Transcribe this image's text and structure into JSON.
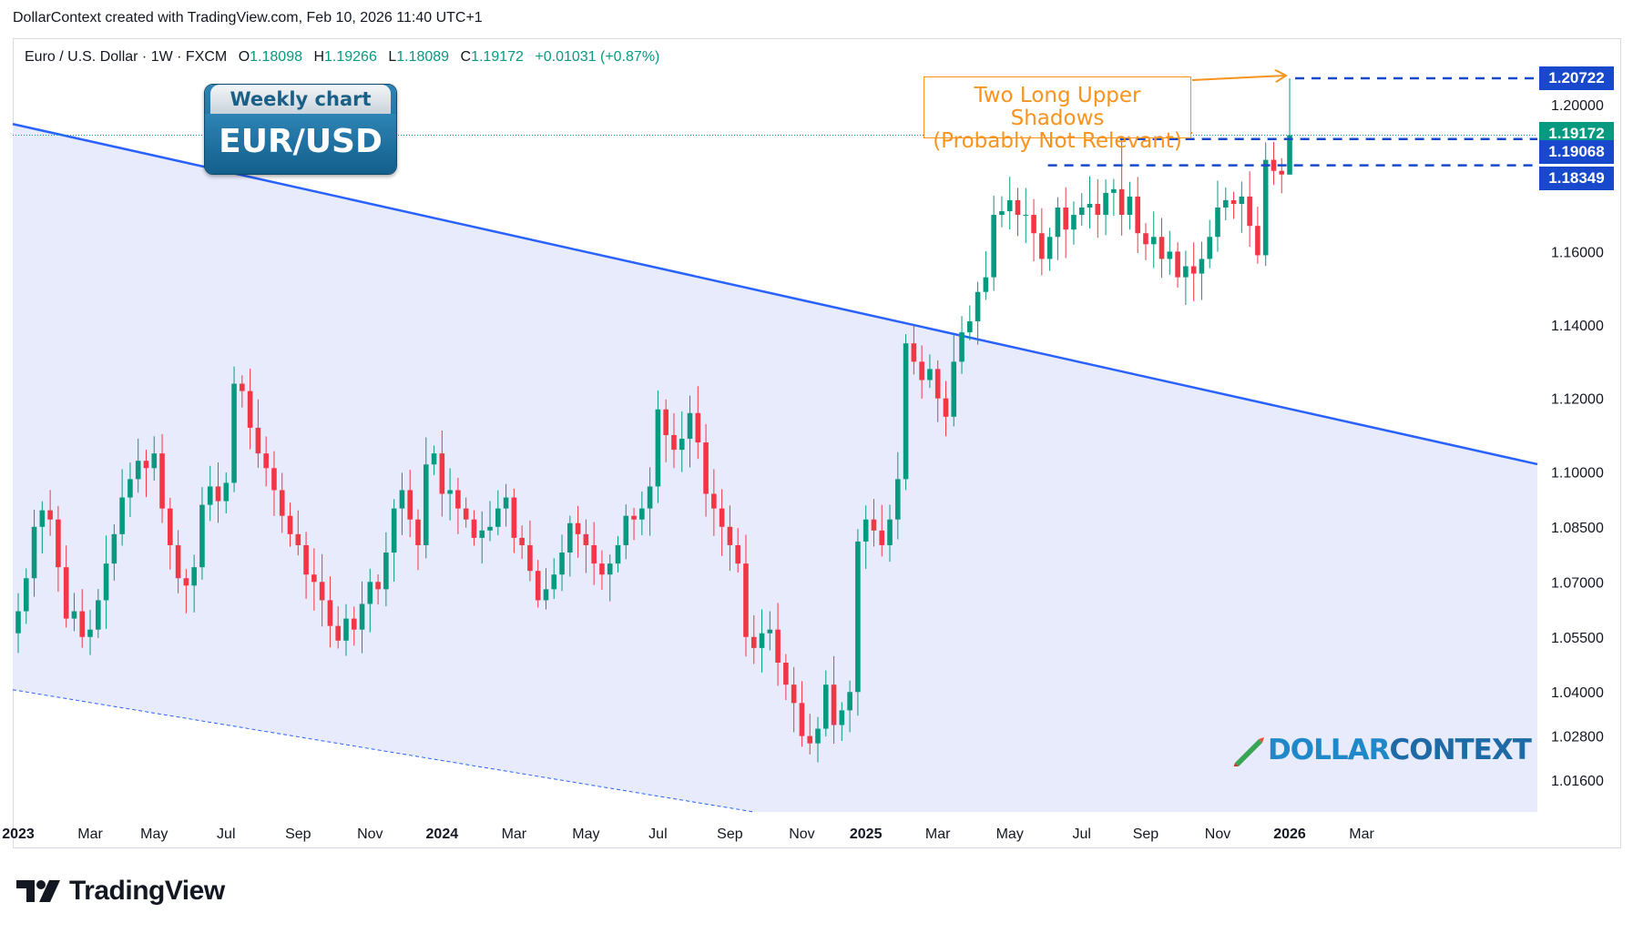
{
  "header": {
    "text": "DollarContext created with TradingView.com, Feb 10, 2026 11:40 UTC+1"
  },
  "legend": {
    "symbol": "Euro / U.S. Dollar · 1W · FXCM",
    "o_label": "O",
    "o_value": "1.18098",
    "h_label": "H",
    "h_value": "1.19266",
    "l_label": "L",
    "l_value": "1.18089",
    "c_label": "C",
    "c_value": "1.19172",
    "change": "+0.01031 (+0.87%)"
  },
  "badge": {
    "top": "Weekly chart",
    "bottom": "EUR/USD"
  },
  "callout": {
    "line1": "Two Long Upper Shadows",
    "line2": "(Probably Not Relevant)"
  },
  "brand": {
    "part1": "DOLLAR",
    "part2": "CONTEXT",
    "icon": "pencil-chart-icon"
  },
  "footer": {
    "logo_text": "TradingView",
    "logo_icon": "tradingview-logo-icon"
  },
  "price_tags": [
    {
      "value": "1.20722",
      "color": "#1848cc"
    },
    {
      "value": "1.19172",
      "color": "#089981"
    },
    {
      "value": "1.19068",
      "color": "#1848cc"
    },
    {
      "value": "1.18349",
      "color": "#1848cc"
    }
  ],
  "colors": {
    "up": "#089981",
    "down": "#f23645",
    "trendline": "#2962ff",
    "channel_fill": "#e8ebfc",
    "dashed_level": "#1848cc",
    "callout": "#f7931e"
  },
  "chart_data": {
    "type": "candlestick",
    "title": "",
    "xlabel": "",
    "ylabel": "",
    "ylim": [
      1.006,
      1.219
    ],
    "y_ticks": [
      1.2,
      1.16,
      1.14,
      1.12,
      1.1,
      1.085,
      1.07,
      1.055,
      1.04,
      1.028,
      1.016
    ],
    "y_tick_labels": [
      "1.20000",
      "1.16000",
      "1.14000",
      "1.12000",
      "1.10000",
      "1.08500",
      "1.07000",
      "1.05500",
      "1.04000",
      "1.02800",
      "1.01600"
    ],
    "x_ticks": [
      {
        "label": "2023",
        "week": 0,
        "bold": true
      },
      {
        "label": "Mar",
        "week": 9
      },
      {
        "label": "May",
        "week": 17
      },
      {
        "label": "Jul",
        "week": 26
      },
      {
        "label": "Sep",
        "week": 35
      },
      {
        "label": "Nov",
        "week": 44
      },
      {
        "label": "2024",
        "week": 53,
        "bold": true
      },
      {
        "label": "Mar",
        "week": 62
      },
      {
        "label": "May",
        "week": 71
      },
      {
        "label": "Jul",
        "week": 80
      },
      {
        "label": "Sep",
        "week": 89
      },
      {
        "label": "Nov",
        "week": 98
      },
      {
        "label": "2025",
        "week": 106,
        "bold": true
      },
      {
        "label": "Mar",
        "week": 115
      },
      {
        "label": "May",
        "week": 124
      },
      {
        "label": "Jul",
        "week": 133
      },
      {
        "label": "Sep",
        "week": 141
      },
      {
        "label": "Nov",
        "week": 150
      },
      {
        "label": "2026",
        "week": 159,
        "bold": true
      },
      {
        "label": "Mar",
        "week": 168
      }
    ],
    "last_close": 1.19172,
    "levels": [
      1.20722,
      1.19172,
      1.19068,
      1.18349
    ],
    "trendline": {
      "start": {
        "week": -2,
        "price": 1.1954
      },
      "end": {
        "week": 171,
        "price": 1.1113
      }
    },
    "lower_channel": {
      "start": {
        "week": -2,
        "price": 1.0411
      },
      "end": {
        "week": 92,
        "price": 1.0063
      }
    },
    "closes": [
      1.062,
      1.071,
      1.085,
      1.0895,
      1.087,
      1.074,
      1.06,
      1.062,
      1.055,
      1.057,
      1.065,
      1.075,
      1.083,
      1.093,
      1.098,
      1.103,
      1.101,
      1.105,
      1.09,
      1.08,
      1.071,
      1.069,
      1.074,
      1.091,
      1.096,
      1.092,
      1.097,
      1.124,
      1.122,
      1.112,
      1.105,
      1.101,
      1.095,
      1.088,
      1.083,
      1.08,
      1.072,
      1.07,
      1.065,
      1.058,
      1.054,
      1.06,
      1.057,
      1.064,
      1.07,
      1.068,
      1.078,
      1.09,
      1.095,
      1.087,
      1.08,
      1.102,
      1.105,
      1.094,
      1.095,
      1.09,
      1.087,
      1.082,
      1.084,
      1.085,
      1.09,
      1.093,
      1.082,
      1.08,
      1.073,
      1.065,
      1.068,
      1.072,
      1.078,
      1.086,
      1.083,
      1.08,
      1.075,
      1.072,
      1.075,
      1.08,
      1.088,
      1.087,
      1.09,
      1.096,
      1.117,
      1.11,
      1.106,
      1.109,
      1.116,
      1.108,
      1.094,
      1.09,
      1.085,
      1.08,
      1.075,
      1.055,
      1.052,
      1.056,
      1.057,
      1.048,
      1.042,
      1.037,
      1.028,
      1.026,
      1.03,
      1.042,
      1.031,
      1.035,
      1.04,
      1.081,
      1.087,
      1.084,
      1.08,
      1.087,
      1.098,
      1.135,
      1.13,
      1.125,
      1.128,
      1.12,
      1.115,
      1.13,
      1.138,
      1.141,
      1.149,
      1.153,
      1.17,
      1.171,
      1.174,
      1.17,
      1.17,
      1.165,
      1.158,
      1.164,
      1.172,
      1.166,
      1.17,
      1.172,
      1.173,
      1.17,
      1.176,
      1.177,
      1.17,
      1.175,
      1.165,
      1.162,
      1.164,
      1.158,
      1.16,
      1.153,
      1.156,
      1.154,
      1.158,
      1.164,
      1.172,
      1.174,
      1.173,
      1.175,
      1.167,
      1.159,
      1.185,
      1.182,
      1.181,
      1.19172
    ]
  }
}
